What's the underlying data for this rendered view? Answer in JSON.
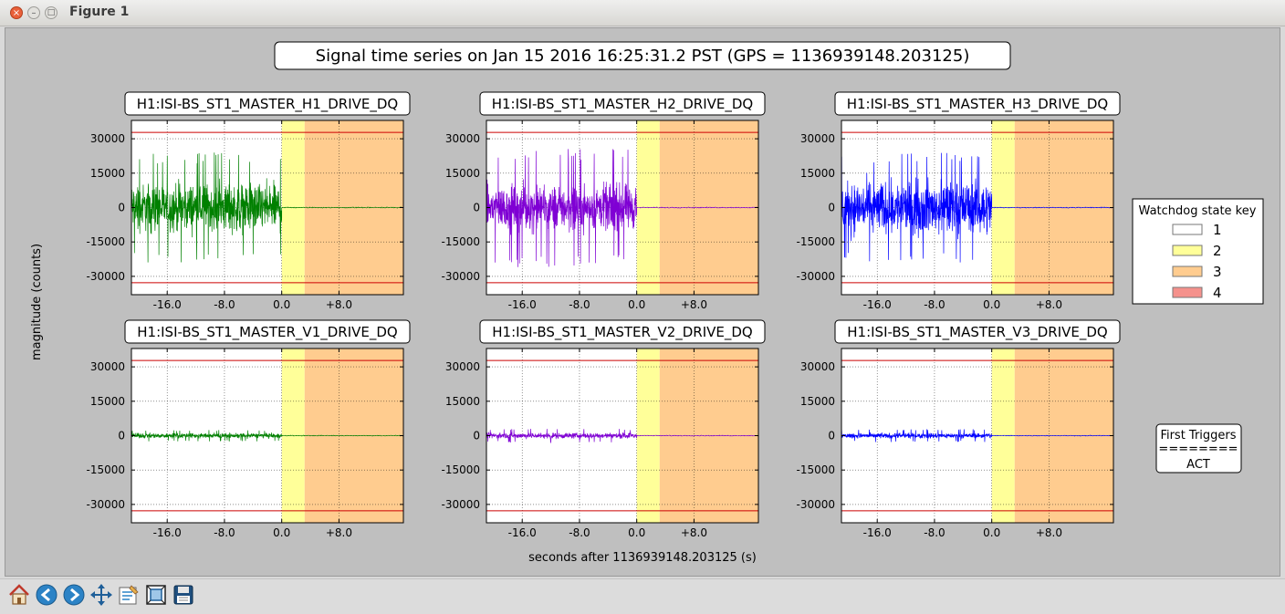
{
  "window": {
    "title": "Figure 1"
  },
  "figure": {
    "suptitle": "Signal time series on Jan 15 2016 16:25:31.2 PST (GPS = 1136939148.203125)",
    "ylabel": "magnitude (counts)",
    "xlabel": "seconds after 1136939148.203125 (s)"
  },
  "legend": {
    "title": "Watchdog state key",
    "entries": [
      {
        "label": "1",
        "color": "#ffffff"
      },
      {
        "label": "2",
        "color": "#ffff99"
      },
      {
        "label": "3",
        "color": "#ffcc8f"
      },
      {
        "label": "4",
        "color": "#f5918c"
      }
    ]
  },
  "first_triggers": {
    "title": "First Triggers",
    "separator": "========",
    "value": "ACT"
  },
  "toolbar": {
    "buttons": [
      "home-icon",
      "back-icon",
      "forward-icon",
      "pan-icon",
      "configure-subplots-icon",
      "zoom-rect-icon",
      "save-icon"
    ]
  },
  "chart_data": [
    {
      "type": "line",
      "title": "H1:ISI-BS_ST1_MASTER_H1_DRIVE_DQ",
      "color": "#008000",
      "xlim": [
        -21,
        17
      ],
      "ylim": [
        -38000,
        38000
      ],
      "xticks": [
        -16,
        -8,
        0,
        8
      ],
      "xtick_labels": [
        "-16.0",
        "-8.0",
        "0.0",
        "+8.0"
      ],
      "yticks": [
        30000,
        15000,
        0,
        -15000,
        -30000
      ],
      "ytick_labels": [
        "30000",
        "15000",
        "0",
        "-15000",
        "-30000"
      ],
      "thresholds": [
        32800,
        -32800
      ],
      "threshold_color": "#cc0000",
      "state_spans": [
        {
          "state": 2,
          "x": [
            0,
            3.2
          ]
        },
        {
          "state": 3,
          "x": [
            3.2,
            17
          ]
        }
      ],
      "signal": {
        "pre": {
          "x": [
            -21,
            0
          ],
          "typical_amplitude": 15000,
          "peak_amplitude": 24000
        },
        "post": {
          "x": [
            0,
            17
          ],
          "typical_amplitude": 300
        }
      },
      "grid": true
    },
    {
      "type": "line",
      "title": "H1:ISI-BS_ST1_MASTER_H2_DRIVE_DQ",
      "color": "#7f00d4",
      "xlim": [
        -21,
        17
      ],
      "ylim": [
        -38000,
        38000
      ],
      "xticks": [
        -16,
        -8,
        0,
        8
      ],
      "xtick_labels": [
        "-16.0",
        "-8.0",
        "0.0",
        "+8.0"
      ],
      "yticks": [
        30000,
        15000,
        0,
        -15000,
        -30000
      ],
      "ytick_labels": [
        "30000",
        "15000",
        "0",
        "-15000",
        "-30000"
      ],
      "thresholds": [
        32800,
        -32800
      ],
      "threshold_color": "#cc0000",
      "state_spans": [
        {
          "state": 2,
          "x": [
            0,
            3.2
          ]
        },
        {
          "state": 3,
          "x": [
            3.2,
            17
          ]
        }
      ],
      "signal": {
        "pre": {
          "x": [
            -21,
            0
          ],
          "typical_amplitude": 14000,
          "peak_amplitude": 26000
        },
        "post": {
          "x": [
            0,
            17
          ],
          "typical_amplitude": 300
        }
      },
      "grid": true
    },
    {
      "type": "line",
      "title": "H1:ISI-BS_ST1_MASTER_H3_DRIVE_DQ",
      "color": "#0000ff",
      "xlim": [
        -21,
        17
      ],
      "ylim": [
        -38000,
        38000
      ],
      "xticks": [
        -16,
        -8,
        0,
        8
      ],
      "xtick_labels": [
        "-16.0",
        "-8.0",
        "0.0",
        "+8.0"
      ],
      "yticks": [
        30000,
        15000,
        0,
        -15000,
        -30000
      ],
      "ytick_labels": [
        "30000",
        "15000",
        "0",
        "-15000",
        "-30000"
      ],
      "thresholds": [
        32800,
        -32800
      ],
      "threshold_color": "#cc0000",
      "state_spans": [
        {
          "state": 2,
          "x": [
            0,
            3.2
          ]
        },
        {
          "state": 3,
          "x": [
            3.2,
            17
          ]
        }
      ],
      "signal": {
        "pre": {
          "x": [
            -21,
            0
          ],
          "typical_amplitude": 16000,
          "peak_amplitude": 24000
        },
        "post": {
          "x": [
            0,
            17
          ],
          "typical_amplitude": 300
        }
      },
      "grid": true
    },
    {
      "type": "line",
      "title": "H1:ISI-BS_ST1_MASTER_V1_DRIVE_DQ",
      "color": "#008000",
      "xlim": [
        -21,
        17
      ],
      "ylim": [
        -38000,
        38000
      ],
      "xticks": [
        -16,
        -8,
        0,
        8
      ],
      "xtick_labels": [
        "-16.0",
        "-8.0",
        "0.0",
        "+8.0"
      ],
      "yticks": [
        30000,
        15000,
        0,
        -15000,
        -30000
      ],
      "ytick_labels": [
        "30000",
        "15000",
        "0",
        "-15000",
        "-30000"
      ],
      "thresholds": [
        32800,
        -32800
      ],
      "threshold_color": "#cc0000",
      "state_spans": [
        {
          "state": 2,
          "x": [
            0,
            3.2
          ]
        },
        {
          "state": 3,
          "x": [
            3.2,
            17
          ]
        }
      ],
      "signal": {
        "pre": {
          "x": [
            -21,
            0
          ],
          "typical_amplitude": 1500,
          "peak_amplitude": 2500
        },
        "post": {
          "x": [
            0,
            17
          ],
          "typical_amplitude": 250
        }
      },
      "grid": true
    },
    {
      "type": "line",
      "title": "H1:ISI-BS_ST1_MASTER_V2_DRIVE_DQ",
      "color": "#7f00d4",
      "xlim": [
        -21,
        17
      ],
      "ylim": [
        -38000,
        38000
      ],
      "xticks": [
        -16,
        -8,
        0,
        8
      ],
      "xtick_labels": [
        "-16.0",
        "-8.0",
        "0.0",
        "+8.0"
      ],
      "yticks": [
        30000,
        15000,
        0,
        -15000,
        -30000
      ],
      "ytick_labels": [
        "30000",
        "15000",
        "0",
        "-15000",
        "-30000"
      ],
      "thresholds": [
        32800,
        -32800
      ],
      "threshold_color": "#cc0000",
      "state_spans": [
        {
          "state": 2,
          "x": [
            0,
            3.2
          ]
        },
        {
          "state": 3,
          "x": [
            3.2,
            17
          ]
        }
      ],
      "signal": {
        "pre": {
          "x": [
            -21,
            0
          ],
          "typical_amplitude": 1800,
          "peak_amplitude": 3000
        },
        "post": {
          "x": [
            0,
            17
          ],
          "typical_amplitude": 250
        }
      },
      "grid": true
    },
    {
      "type": "line",
      "title": "H1:ISI-BS_ST1_MASTER_V3_DRIVE_DQ",
      "color": "#0000ff",
      "xlim": [
        -21,
        17
      ],
      "ylim": [
        -38000,
        38000
      ],
      "xticks": [
        -16,
        -8,
        0,
        8
      ],
      "xtick_labels": [
        "-16.0",
        "-8.0",
        "0.0",
        "+8.0"
      ],
      "yticks": [
        30000,
        15000,
        0,
        -15000,
        -30000
      ],
      "ytick_labels": [
        "30000",
        "15000",
        "0",
        "-15000",
        "-30000"
      ],
      "thresholds": [
        32800,
        -32800
      ],
      "threshold_color": "#cc0000",
      "state_spans": [
        {
          "state": 2,
          "x": [
            0,
            3.2
          ]
        },
        {
          "state": 3,
          "x": [
            3.2,
            17
          ]
        }
      ],
      "signal": {
        "pre": {
          "x": [
            -21,
            0
          ],
          "typical_amplitude": 1600,
          "peak_amplitude": 2800
        },
        "post": {
          "x": [
            0,
            17
          ],
          "typical_amplitude": 250
        }
      },
      "grid": true
    }
  ]
}
